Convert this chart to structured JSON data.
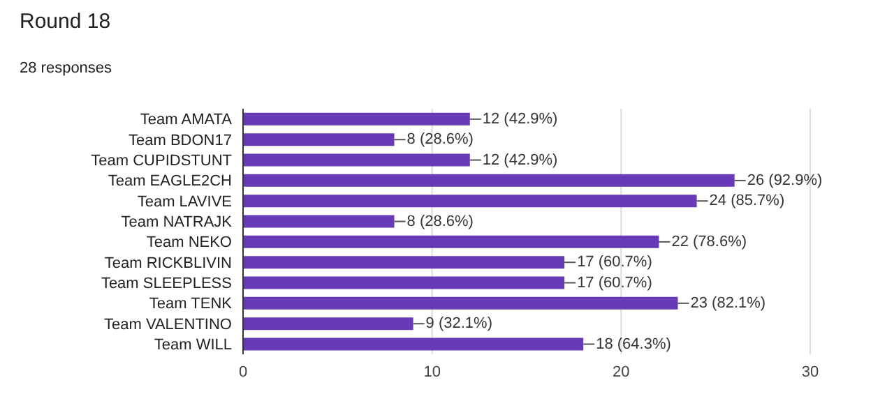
{
  "chart_data": {
    "type": "bar",
    "orientation": "horizontal",
    "title": "Round 18",
    "subtitle": "28 responses",
    "categories": [
      "Team AMATA",
      "Team BDON17",
      "Team CUPIDSTUNT",
      "Team EAGLE2CH",
      "Team LAVIVE",
      "Team NATRAJK",
      "Team NEKO",
      "Team RICKBLIVIN",
      "Team SLEEPLESS",
      "Team TENK",
      "Team VALENTINO",
      "Team WILL"
    ],
    "values": [
      12,
      8,
      12,
      26,
      24,
      8,
      22,
      17,
      17,
      23,
      9,
      18
    ],
    "value_labels": [
      "12 (42.9%)",
      "8 (28.6%)",
      "12 (42.9%)",
      "26 (92.9%)",
      "24 (85.7%)",
      "8 (28.6%)",
      "22 (78.6%)",
      "17 (60.7%)",
      "17 (60.7%)",
      "23 (82.1%)",
      "9 (32.1%)",
      "18 (64.3%)"
    ],
    "color": "#673ab7",
    "xlim": [
      0,
      30
    ],
    "xticks": [
      0,
      10,
      20,
      30
    ],
    "grid": "x",
    "legend": false
  }
}
